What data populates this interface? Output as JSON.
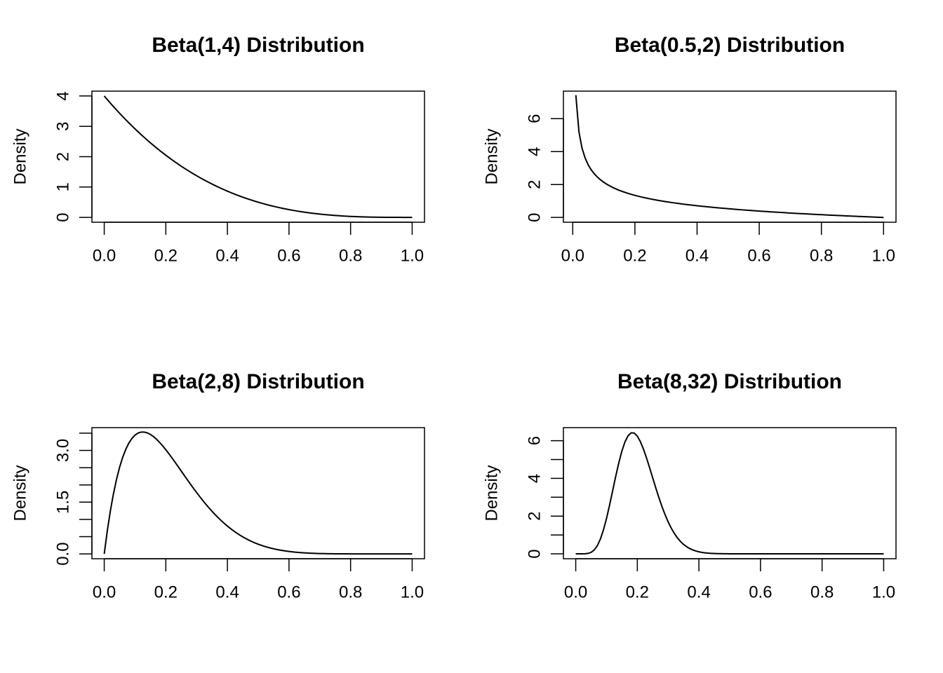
{
  "chart_data": [
    {
      "type": "line",
      "title": "Beta(1,4) Distribution",
      "xlabel": "",
      "ylabel": "Density",
      "alpha": 1,
      "beta": 4,
      "x_range": [
        0.0,
        1.0
      ],
      "xlim": [
        -0.04,
        1.04
      ],
      "ylim": [
        -0.16,
        4.16
      ],
      "xticks": [
        0.0,
        0.2,
        0.4,
        0.6,
        0.8,
        1.0
      ],
      "xtick_labels": [
        "0.0",
        "0.2",
        "0.4",
        "0.6",
        "0.8",
        "1.0"
      ],
      "yticks": [
        0,
        1,
        2,
        3,
        4
      ],
      "ytick_labels": [
        "0",
        "1",
        "2",
        "3",
        "4"
      ],
      "grid": false,
      "series": [
        {
          "x": [
            0.0,
            0.1,
            0.2,
            0.3,
            0.4,
            0.5,
            0.6,
            0.7,
            0.8,
            0.9,
            1.0
          ],
          "y": [
            4.0,
            2.916,
            2.048,
            1.372,
            0.864,
            0.5,
            0.256,
            0.108,
            0.032,
            0.004,
            0.0
          ]
        }
      ]
    },
    {
      "type": "line",
      "title": "Beta(0.5,2) Distribution",
      "xlabel": "",
      "ylabel": "Density",
      "alpha": 0.5,
      "beta": 2,
      "x_range": [
        0.01,
        1.0
      ],
      "xlim": [
        -0.03,
        1.04
      ],
      "ylim": [
        -0.29,
        7.67
      ],
      "xticks": [
        0.0,
        0.2,
        0.4,
        0.6,
        0.8,
        1.0
      ],
      "xtick_labels": [
        "0.0",
        "0.2",
        "0.4",
        "0.6",
        "0.8",
        "1.0"
      ],
      "yticks": [
        0,
        2,
        4,
        6
      ],
      "ytick_labels": [
        "0",
        "2",
        "4",
        "6"
      ],
      "grid": false,
      "series": [
        {
          "x": [
            0.01,
            0.02,
            0.05,
            0.1,
            0.2,
            0.4,
            0.6,
            0.8,
            1.0
          ],
          "y": [
            7.39,
            5.17,
            3.18,
            2.13,
            1.34,
            0.71,
            0.39,
            0.18,
            0.0
          ]
        }
      ]
    },
    {
      "type": "line",
      "title": "Beta(2,8) Distribution",
      "xlabel": "",
      "ylabel": "Density",
      "alpha": 2,
      "beta": 8,
      "x_range": [
        0.0,
        1.0
      ],
      "xlim": [
        -0.04,
        1.04
      ],
      "ylim": [
        -0.14,
        3.66
      ],
      "xticks": [
        0.0,
        0.2,
        0.4,
        0.6,
        0.8,
        1.0
      ],
      "xtick_labels": [
        "0.0",
        "0.2",
        "0.4",
        "0.6",
        "0.8",
        "1.0"
      ],
      "yticks": [
        0.0,
        0.5,
        1.0,
        1.5,
        2.0,
        2.5,
        3.0,
        3.5
      ],
      "ytick_labels": [
        "0.0",
        "",
        "",
        "1.5",
        "",
        "",
        "3.0",
        ""
      ],
      "grid": false,
      "series": [
        {
          "x": [
            0.0,
            0.05,
            0.125,
            0.2,
            0.3,
            0.4,
            0.5,
            0.6,
            0.8,
            1.0
          ],
          "y": [
            0.0,
            2.5,
            3.52,
            3.02,
            1.98,
            0.9,
            0.28,
            0.05,
            0.0,
            0.0
          ]
        }
      ]
    },
    {
      "type": "line",
      "title": "Beta(8,32) Distribution",
      "xlabel": "",
      "ylabel": "Density",
      "alpha": 8,
      "beta": 32,
      "x_range": [
        0.0,
        1.0
      ],
      "xlim": [
        -0.04,
        1.04
      ],
      "ylim": [
        -0.26,
        6.69
      ],
      "xticks": [
        0.0,
        0.2,
        0.4,
        0.6,
        0.8,
        1.0
      ],
      "xtick_labels": [
        "0.0",
        "0.2",
        "0.4",
        "0.6",
        "0.8",
        "1.0"
      ],
      "yticks": [
        0,
        1,
        2,
        3,
        4,
        5,
        6
      ],
      "ytick_labels": [
        "0",
        "",
        "2",
        "",
        "4",
        "",
        "6"
      ],
      "grid": false,
      "series": [
        {
          "x": [
            0.0,
            0.1,
            0.18,
            0.2,
            0.3,
            0.4,
            0.5,
            1.0
          ],
          "y": [
            0.0,
            2.33,
            6.42,
            6.32,
            2.34,
            0.14,
            0.0,
            0.0
          ]
        }
      ]
    }
  ]
}
